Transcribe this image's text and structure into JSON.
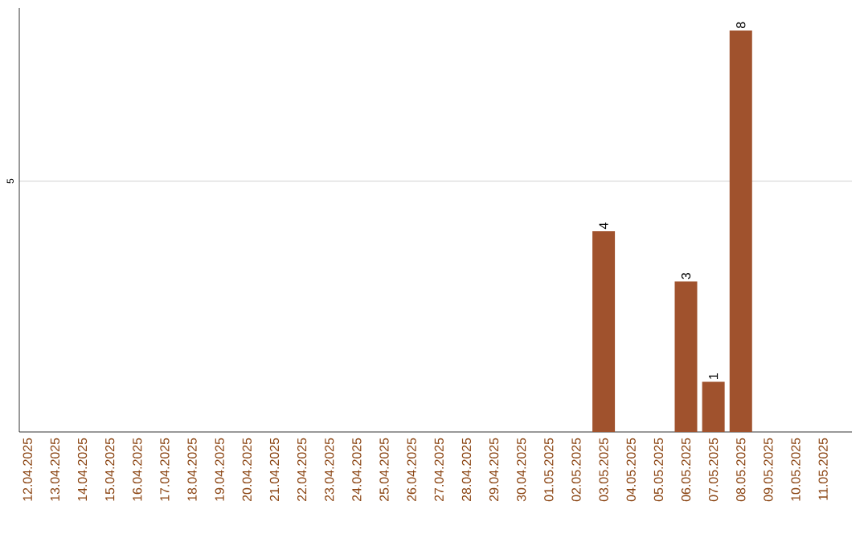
{
  "chart_data": {
    "type": "bar",
    "categories": [
      "12.04.2025",
      "13.04.2025",
      "14.04.2025",
      "15.04.2025",
      "16.04.2025",
      "17.04.2025",
      "18.04.2025",
      "19.04.2025",
      "20.04.2025",
      "21.04.2025",
      "22.04.2025",
      "23.04.2025",
      "24.04.2025",
      "25.04.2025",
      "26.04.2025",
      "27.04.2025",
      "28.04.2025",
      "29.04.2025",
      "30.04.2025",
      "01.05.2025",
      "02.05.2025",
      "03.05.2025",
      "04.05.2025",
      "05.05.2025",
      "06.05.2025",
      "07.05.2025",
      "08.05.2025",
      "09.05.2025",
      "10.05.2025",
      "11.05.2025"
    ],
    "values": [
      null,
      null,
      null,
      null,
      null,
      null,
      null,
      null,
      null,
      null,
      null,
      null,
      null,
      null,
      null,
      null,
      null,
      null,
      null,
      null,
      null,
      4,
      null,
      null,
      3,
      1,
      8,
      null,
      null,
      null
    ],
    "color": "#a0522d",
    "ylim": [
      0,
      8.45
    ],
    "yticks": [
      5
    ],
    "grid": "y",
    "data_labels": true
  }
}
